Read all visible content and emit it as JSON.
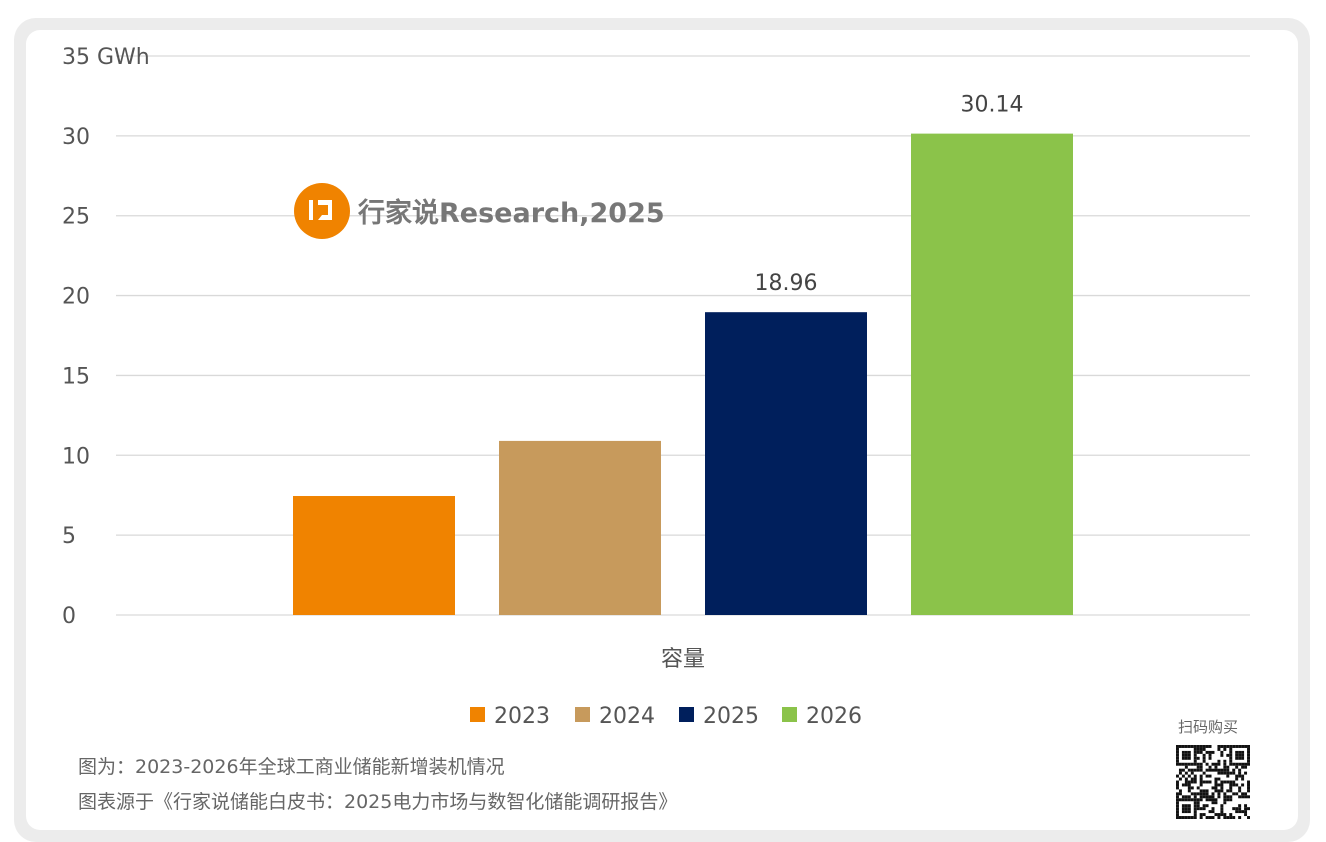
{
  "chart_data": {
    "type": "bar",
    "title": "",
    "unit": "GWh",
    "xlabel": "容量",
    "ylabel": "GWh",
    "ylim": [
      0,
      35
    ],
    "yticks": [
      0,
      5,
      10,
      15,
      20,
      25,
      30,
      35
    ],
    "grid": true,
    "legend_position": "bottom",
    "category": "容量",
    "series": [
      {
        "name": "2023",
        "value": 7.45,
        "color": "#f08300",
        "label": ""
      },
      {
        "name": "2024",
        "value": 10.9,
        "color": "#c79a5c",
        "label": ""
      },
      {
        "name": "2025",
        "value": 18.96,
        "color": "#001f5c",
        "label": "18.96"
      },
      {
        "name": "2026",
        "value": 30.14,
        "color": "#8bc34a",
        "label": "30.14"
      }
    ]
  },
  "watermark": {
    "text": "行家说Research,2025",
    "logo_color": "#f08300"
  },
  "footer": {
    "caption": "图为：2023-2026年全球工商业储能新增装机情况",
    "source": "图表源于《行家说储能白皮书：2025电力市场与数智化储能调研报告》",
    "qr_label": "扫码购买"
  }
}
